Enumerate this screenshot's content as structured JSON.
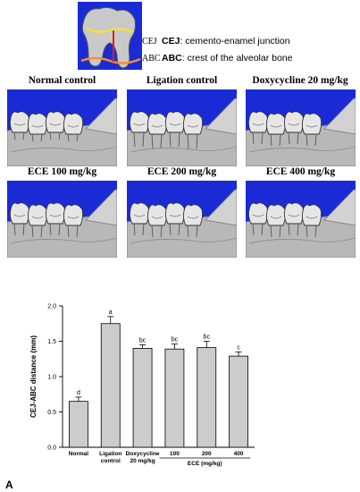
{
  "legend": {
    "cej_abbr": "CEJ",
    "cej_term": "CEJ",
    "cej_def": ": cemento-enamel junction",
    "abc_abbr": "ABC",
    "abc_term": "ABC",
    "abc_def": ": crest of the alveolar bone"
  },
  "panels": [
    {
      "title": "Normal control"
    },
    {
      "title": "Ligation control"
    },
    {
      "title": "Doxycycline 20 mg/kg"
    },
    {
      "title": "ECE 100 mg/kg"
    },
    {
      "title": "ECE 200 mg/kg"
    },
    {
      "title": "ECE 400 mg/kg"
    }
  ],
  "colors": {
    "panel_bg": "#1a2bd6",
    "bone": "#b8b8b8",
    "bar_fill": "#cccccc",
    "cej_line": "#f2e33a",
    "abc_line": "#ff8c2a"
  },
  "chart_data": {
    "type": "bar",
    "categories": [
      "Normal",
      "Ligation control",
      "Doxycycline 20 mg/kg",
      "100",
      "200",
      "400"
    ],
    "category_lines": [
      [
        "Normal"
      ],
      [
        "Ligation",
        "control"
      ],
      [
        "Doxycycline",
        "20 mg/kg"
      ],
      [
        "100"
      ],
      [
        "200"
      ],
      [
        "400"
      ]
    ],
    "values": [
      0.65,
      1.75,
      1.4,
      1.39,
      1.41,
      1.29
    ],
    "errors": [
      0.06,
      0.1,
      0.05,
      0.07,
      0.09,
      0.06
    ],
    "letters": [
      "d",
      "a",
      "bc",
      "bc",
      "bc",
      "c"
    ],
    "ylabel": "CEJ-ABC distance (mm)",
    "group_label": "ECE (mg/kg)",
    "ylim": [
      0,
      2.0
    ],
    "yticks": [
      "0.0",
      "0.5",
      "1.0",
      "1.5",
      "2.0"
    ],
    "grid": false
  },
  "figure_label": "A"
}
